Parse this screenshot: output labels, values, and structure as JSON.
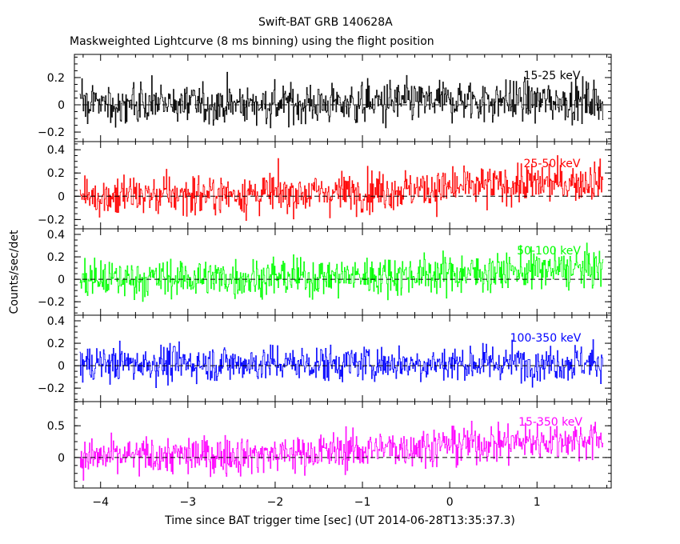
{
  "chart_data": {
    "type": "line",
    "title": "Swift-BAT GRB 140628A",
    "subtitle": "Maskweighted Lightcurve (8 ms binning) using the flight position",
    "xlabel": "Time since BAT trigger time [sec] (UT 2014-06-28T13:35:37.3)",
    "ylabel": "Counts/sec/det",
    "xlim": [
      -4.3,
      1.85
    ],
    "x_ticks": [
      -4,
      -3,
      -2,
      -1,
      0,
      1
    ],
    "x_tick_labels": [
      "−4",
      "−3",
      "−2",
      "−1",
      "0",
      "1"
    ],
    "bin_width": 0.008,
    "x_start": -4.24,
    "x_end": 1.76,
    "panels": [
      {
        "name": "15-25 keV",
        "color": "#000000",
        "ylim": [
          -0.27,
          0.37
        ],
        "y_ticks": [
          -0.2,
          0,
          0.2
        ],
        "y_tick_labels": [
          "−0.2",
          "0",
          "0.2"
        ],
        "noise_std": 0.075,
        "trend": [
          [
            -4.24,
            0.0
          ],
          [
            -1.0,
            0.01
          ],
          [
            0.0,
            0.03
          ],
          [
            1.76,
            0.03
          ]
        ]
      },
      {
        "name": "25-50 keV",
        "color": "#ff0000",
        "ylim": [
          -0.28,
          0.47
        ],
        "y_ticks": [
          -0.2,
          0,
          0.2,
          0.4
        ],
        "y_tick_labels": [
          "−0.2",
          "0",
          "0.2",
          "0.4"
        ],
        "noise_std": 0.085,
        "trend": [
          [
            -4.24,
            0.0
          ],
          [
            -1.5,
            0.03
          ],
          [
            0.0,
            0.07
          ],
          [
            1.0,
            0.11
          ],
          [
            1.76,
            0.13
          ]
        ]
      },
      {
        "name": "50-100 keV",
        "color": "#00ff00",
        "ylim": [
          -0.32,
          0.45
        ],
        "y_ticks": [
          -0.2,
          0,
          0.2,
          0.4
        ],
        "y_tick_labels": [
          "−0.2",
          "0",
          "0.2",
          "0.4"
        ],
        "noise_std": 0.085,
        "trend": [
          [
            -4.24,
            0.0
          ],
          [
            -1.5,
            0.02
          ],
          [
            0.0,
            0.05
          ],
          [
            1.0,
            0.08
          ],
          [
            1.76,
            0.1
          ]
        ]
      },
      {
        "name": "100-350 keV",
        "color": "#0000ff",
        "ylim": [
          -0.32,
          0.45
        ],
        "y_ticks": [
          -0.2,
          0,
          0.2,
          0.4
        ],
        "y_tick_labels": [
          "−0.2",
          "0",
          "0.2",
          "0.4"
        ],
        "noise_std": 0.08,
        "trend": [
          [
            -4.24,
            0.02
          ],
          [
            0.0,
            0.02
          ],
          [
            1.76,
            0.03
          ]
        ]
      },
      {
        "name": "15-350 keV",
        "color": "#ff00ff",
        "ylim": [
          -0.48,
          0.88
        ],
        "y_ticks": [
          0,
          0.5
        ],
        "y_tick_labels": [
          "0",
          "0.5"
        ],
        "noise_std": 0.15,
        "trend": [
          [
            -4.24,
            0.0
          ],
          [
            -2.0,
            0.05
          ],
          [
            -1.0,
            0.12
          ],
          [
            0.0,
            0.2
          ],
          [
            1.0,
            0.26
          ],
          [
            1.76,
            0.3
          ]
        ]
      }
    ]
  }
}
